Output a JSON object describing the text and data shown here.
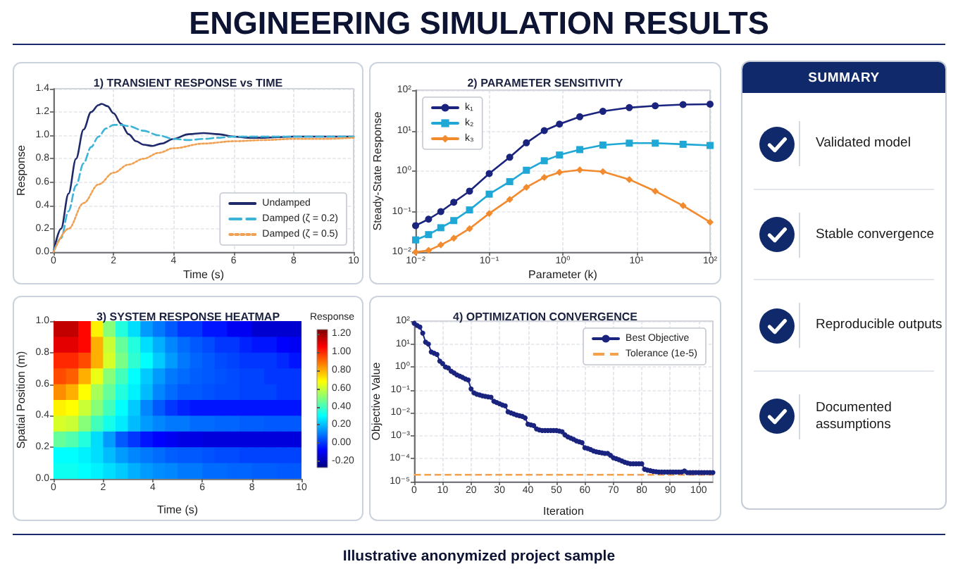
{
  "chart_data": [
    {
      "type": "other",
      "title": "ENGINEERING SIMULATION RESULTS",
      "annotations": [
        "Illustrative anonymized project sample"
      ]
    },
    {
      "type": "line",
      "title": "1) TRANSIENT RESPONSE vs TIME",
      "xlabel": "Time (s)",
      "ylabel": "Response",
      "xlim": [
        0,
        10
      ],
      "xticks": [
        0,
        2,
        4,
        6,
        8,
        10
      ],
      "ylim": [
        0,
        1.4
      ],
      "yticks": [
        {
          "value": 0,
          "label": "0.0"
        },
        0.2,
        0.4,
        0.6,
        0.8,
        {
          "value": 1,
          "label": "1.0"
        },
        1.2,
        1.4
      ],
      "grid": true,
      "legend": "bottom right",
      "marker": "none",
      "series": [
        {
          "name": "Undamped",
          "color": "#1f2a6b",
          "line_style": "solid",
          "x": [
            0,
            0.25,
            0.5,
            0.75,
            1,
            1.25,
            1.5,
            1.6,
            1.8,
            2,
            2.25,
            2.5,
            2.75,
            3,
            3.3,
            3.6,
            4,
            4.5,
            5,
            5.5,
            6,
            6.5,
            7,
            8,
            9,
            10
          ],
          "values": [
            0,
            0.2,
            0.5,
            0.8,
            1.05,
            1.2,
            1.26,
            1.27,
            1.25,
            1.19,
            1.1,
            1.01,
            0.95,
            0.92,
            0.91,
            0.93,
            0.97,
            1.01,
            1.02,
            1.01,
            0.99,
            0.98,
            0.98,
            0.99,
            0.99,
            0.99
          ]
        },
        {
          "name": "Damped (ζ = 0.2)",
          "color": "#3cb4d8",
          "line_style": "dashed",
          "x": [
            0,
            0.25,
            0.5,
            0.75,
            1,
            1.25,
            1.5,
            1.75,
            2,
            2.25,
            2.5,
            3,
            3.5,
            4,
            4.5,
            5,
            5.5,
            6,
            7,
            8,
            10
          ],
          "values": [
            0,
            0.12,
            0.35,
            0.57,
            0.76,
            0.9,
            0.99,
            1.06,
            1.09,
            1.09,
            1.08,
            1.04,
            1,
            0.97,
            0.96,
            0.97,
            0.98,
            0.99,
            0.99,
            0.99,
            0.99
          ]
        },
        {
          "name": "Damped (ζ = 0.5)",
          "color": "#f0a050",
          "line_style": "dotted",
          "x": [
            0,
            0.5,
            1,
            1.5,
            2,
            2.5,
            3,
            3.5,
            4,
            5,
            6,
            7,
            8,
            9,
            10
          ],
          "values": [
            0,
            0.2,
            0.42,
            0.58,
            0.68,
            0.75,
            0.8,
            0.85,
            0.89,
            0.93,
            0.95,
            0.96,
            0.97,
            0.97,
            0.98
          ]
        }
      ]
    },
    {
      "type": "line",
      "title": "2) PARAMETER SENSITIVITY",
      "xlabel": "Parameter (k)",
      "ylabel": "Steady-State Response",
      "log": "xy",
      "xlim": [
        0.01,
        100
      ],
      "xticks": [
        {
          "value": 0.01,
          "label": "10⁻²"
        },
        {
          "value": 0.1,
          "label": "10⁻¹"
        },
        {
          "value": 1,
          "label": "10⁰"
        },
        {
          "value": 10,
          "label": "10¹"
        },
        {
          "value": 100,
          "label": "10²"
        }
      ],
      "ylim": [
        0.01,
        100
      ],
      "yticks": [
        {
          "value": 0.01,
          "label": "10⁻²"
        },
        {
          "value": 0.1,
          "label": "10⁻¹"
        },
        {
          "value": 1,
          "label": "10⁰"
        },
        {
          "value": 10,
          "label": "10¹"
        },
        {
          "value": 100,
          "label": "10²"
        }
      ],
      "grid": true,
      "legend": "top left",
      "x": [
        0.01,
        0.015,
        0.022,
        0.033,
        0.054,
        0.1,
        0.19,
        0.32,
        0.56,
        0.9,
        1.7,
        3.5,
        8,
        18,
        43,
        100
      ],
      "series": [
        {
          "name": "k₁",
          "color": "#1a237e",
          "marker": "circle",
          "values": [
            0.045,
            0.065,
            0.1,
            0.17,
            0.32,
            0.87,
            2.2,
            5,
            10,
            14.5,
            22,
            30,
            37,
            41,
            44,
            45
          ]
        },
        {
          "name": "k₂",
          "color": "#1fa8d6",
          "marker": "square",
          "values": [
            0.02,
            0.027,
            0.04,
            0.06,
            0.11,
            0.27,
            0.55,
            1.05,
            1.8,
            2.5,
            3.4,
            4.4,
            4.9,
            4.9,
            4.6,
            4.3
          ]
        },
        {
          "name": "k₃",
          "color": "#f28a2e",
          "marker": "diamond",
          "values": [
            0.01,
            0.011,
            0.015,
            0.022,
            0.038,
            0.09,
            0.2,
            0.4,
            0.7,
            0.93,
            1.07,
            0.97,
            0.62,
            0.32,
            0.14,
            0.055
          ]
        }
      ]
    },
    {
      "type": "other",
      "title": "SUMMARY",
      "annotations": [
        "Validated model",
        "Stable convergence",
        "Reproducible outputs",
        "Documented assumptions"
      ]
    },
    {
      "type": "heatmap",
      "title": "3) SYSTEM RESPONSE HEATMAP",
      "xlabel": "Time (s)",
      "ylabel": "Spatial Position (m)",
      "clabel": "Response",
      "x": [
        0.25,
        0.75,
        1.25,
        1.75,
        2.25,
        2.75,
        3.25,
        3.75,
        4.25,
        4.75,
        5.25,
        5.75,
        6.25,
        6.75,
        7.25,
        7.75,
        8.25,
        8.75,
        9.25,
        9.75
      ],
      "y": [
        0.95,
        0.85,
        0.75,
        0.65,
        0.55,
        0.45,
        0.35,
        0.25,
        0.15,
        0.05
      ],
      "xlim": [
        0,
        10
      ],
      "xticks": [
        0,
        2,
        4,
        6,
        8,
        10
      ],
      "ylim": [
        0,
        1
      ],
      "yticks": [
        {
          "value": 0,
          "label": "0.0"
        },
        0.2,
        0.4,
        0.6,
        0.8,
        {
          "value": 1,
          "label": "1.0"
        }
      ],
      "clim": [
        -0.27,
        1.25
      ],
      "cticks": [
        {
          "value": -0.2,
          "label": "-0.20"
        },
        {
          "value": 0,
          "label": "0.00"
        },
        {
          "value": 0.2,
          "label": "0.20"
        },
        {
          "value": 0.4,
          "label": "0.40"
        },
        {
          "value": 0.6,
          "label": "0.60"
        },
        {
          "value": 0.8,
          "label": "0.80"
        },
        {
          "value": 1,
          "label": "1.00"
        },
        {
          "value": 1.2,
          "label": "1.20"
        }
      ],
      "cells": [
        [
          1.15,
          1.15,
          1.05,
          0.7,
          0.5,
          0.35,
          0.25,
          0.15,
          0.1,
          0.05,
          0,
          0,
          -0.05,
          -0.05,
          -0.1,
          -0.1,
          -0.15,
          -0.15,
          -0.15,
          -0.15
        ],
        [
          1.1,
          1.1,
          1.05,
          0.8,
          0.6,
          0.45,
          0.35,
          0.25,
          0.18,
          0.12,
          0.08,
          0.05,
          0.03,
          0,
          0,
          -0.03,
          -0.05,
          -0.05,
          -0.08,
          -0.1
        ],
        [
          1,
          1,
          0.95,
          0.8,
          0.62,
          0.48,
          0.37,
          0.3,
          0.22,
          0.15,
          0.1,
          0.07,
          0.05,
          0.03,
          0.02,
          0,
          0,
          0,
          -0.02,
          -0.05
        ],
        [
          0.95,
          0.92,
          0.8,
          0.65,
          0.5,
          0.4,
          0.3,
          0.22,
          0.15,
          0.1,
          0.08,
          0.06,
          0.05,
          0.04,
          0.03,
          0.02,
          0.02,
          0,
          0,
          0
        ],
        [
          0.85,
          0.8,
          0.68,
          0.55,
          0.45,
          0.35,
          0.28,
          0.2,
          0.12,
          0.08,
          0.05,
          0.05,
          0.04,
          0.03,
          0.03,
          0.02,
          0.02,
          0.02,
          0,
          0
        ],
        [
          0.7,
          0.68,
          0.6,
          0.5,
          0.4,
          0.3,
          0.22,
          0.12,
          0.05,
          0,
          -0.03,
          -0.05,
          -0.05,
          -0.05,
          -0.05,
          -0.05,
          -0.05,
          -0.05,
          -0.05,
          -0.05
        ],
        [
          0.62,
          0.6,
          0.5,
          0.4,
          0.33,
          0.27,
          0.2,
          0.15,
          0.12,
          0.1,
          0.1,
          0.08,
          0.08,
          0.07,
          0.07,
          0.06,
          0.06,
          0.05,
          0.05,
          0.05
        ],
        [
          0.45,
          0.42,
          0.35,
          0.25,
          0.15,
          0.05,
          0,
          -0.05,
          -0.08,
          -0.1,
          -0.12,
          -0.12,
          -0.13,
          -0.13,
          -0.13,
          -0.13,
          -0.13,
          -0.13,
          -0.13,
          -0.13
        ],
        [
          0.3,
          0.3,
          0.28,
          0.25,
          0.2,
          0.15,
          0.12,
          0.1,
          0.08,
          0.06,
          0.05,
          0.05,
          0.04,
          0.03,
          0.03,
          0.02,
          0.02,
          0.02,
          0.02,
          0.02
        ],
        [
          0.32,
          0.32,
          0.3,
          0.28,
          0.25,
          0.22,
          0.18,
          0.15,
          0.13,
          0.12,
          0.1,
          0.1,
          0.08,
          0.08,
          0.07,
          0.07,
          0.06,
          0.06,
          0.05,
          0.05
        ]
      ]
    },
    {
      "type": "line",
      "title": "4) OPTIMIZATION CONVERGENCE",
      "xlabel": "Iteration",
      "ylabel": "Objective Value",
      "log": "y",
      "xlim": [
        0,
        105
      ],
      "xticks": [
        0,
        10,
        20,
        30,
        40,
        50,
        60,
        70,
        80,
        90,
        100
      ],
      "ylim": [
        1e-05,
        100
      ],
      "yticks": [
        {
          "value": 1e-05,
          "label": "10⁻⁵"
        },
        {
          "value": 0.0001,
          "label": "10⁻⁴"
        },
        {
          "value": 0.001,
          "label": "10⁻³"
        },
        {
          "value": 0.01,
          "label": "10⁻²"
        },
        {
          "value": 0.1,
          "label": "10⁻¹"
        },
        {
          "value": 1,
          "label": "10⁰"
        },
        {
          "value": 10,
          "label": "10¹"
        },
        {
          "value": 100,
          "label": "10²"
        }
      ],
      "grid": true,
      "legend": "top right",
      "marker": "circle",
      "series": [
        {
          "name": "Best Objective",
          "color": "#1a237e",
          "x": [
            0,
            1,
            2,
            3,
            4,
            5,
            6,
            7,
            8,
            9,
            10,
            11,
            12,
            13,
            14,
            15,
            16,
            17,
            18,
            19,
            20,
            21,
            22,
            23,
            24,
            25,
            26,
            27,
            28,
            29,
            30,
            31,
            32,
            33,
            34,
            35,
            36,
            37,
            38,
            39,
            40,
            41,
            42,
            43,
            44,
            45,
            46,
            47,
            48,
            49,
            50,
            51,
            52,
            53,
            54,
            55,
            56,
            57,
            58,
            59,
            60,
            61,
            62,
            63,
            64,
            65,
            66,
            67,
            68,
            69,
            70,
            71,
            72,
            73,
            74,
            75,
            76,
            77,
            78,
            79,
            80,
            81,
            82,
            83,
            84,
            85,
            86,
            87,
            88,
            89,
            90,
            91,
            92,
            93,
            94,
            95,
            96,
            97,
            98,
            99,
            100,
            101,
            102,
            103,
            104,
            105
          ],
          "values": [
            80,
            65,
            55,
            30,
            12,
            10,
            4.5,
            4,
            3.5,
            1.8,
            1.4,
            1,
            0.9,
            0.65,
            0.55,
            0.45,
            0.4,
            0.35,
            0.3,
            0.27,
            0.11,
            0.075,
            0.065,
            0.06,
            0.055,
            0.052,
            0.05,
            0.048,
            0.032,
            0.028,
            0.025,
            0.022,
            0.02,
            0.011,
            0.01,
            0.009,
            0.008,
            0.0075,
            0.007,
            0.006,
            0.0032,
            0.003,
            0.0028,
            0.002,
            0.0018,
            0.0017,
            0.0017,
            0.0017,
            0.0017,
            0.0017,
            0.0017,
            0.0016,
            0.0015,
            0.0011,
            0.0009,
            0.0008,
            0.0007,
            0.0006,
            0.00055,
            0.0005,
            0.0003,
            0.00028,
            0.00025,
            0.00022,
            0.0002,
            0.00019,
            0.00018,
            0.00017,
            0.00017,
            0.00014,
            0.00011,
            0.0001,
            9e-05,
            8e-05,
            7e-05,
            6.5e-05,
            6e-05,
            6e-05,
            6e-05,
            6e-05,
            6e-05,
            3.5e-05,
            3.2e-05,
            3e-05,
            2.8e-05,
            2.7e-05,
            2.6e-05,
            2.6e-05,
            2.6e-05,
            2.6e-05,
            2.6e-05,
            2.6e-05,
            2.6e-05,
            2.6e-05,
            2.6e-05,
            2.9e-05,
            2.5e-05,
            2.5e-05,
            2.5e-05,
            2.5e-05,
            2.5e-05,
            2.5e-05,
            2.5e-05,
            2.5e-05,
            2.5e-05,
            2.5e-05
          ]
        }
      ],
      "ref_lines": [
        {
          "axis": "y",
          "value": 2e-05,
          "label": "Tolerance (1e-5)",
          "color": "#f5a04a",
          "line_style": "dashed"
        }
      ]
    }
  ]
}
